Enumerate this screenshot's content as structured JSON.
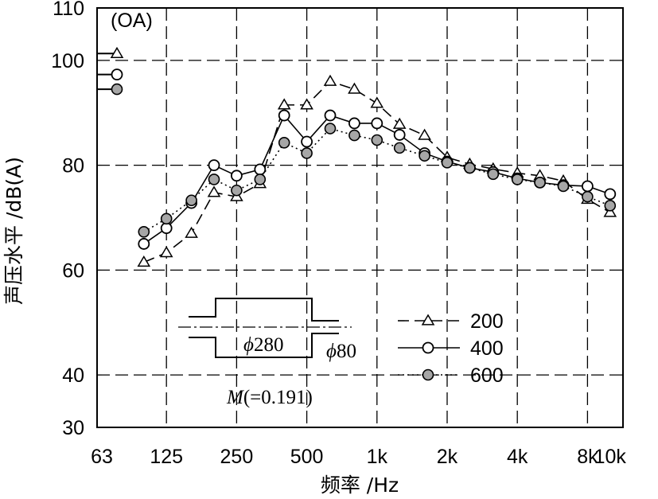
{
  "chart_data": {
    "type": "line",
    "xlabel": "频率 /Hz",
    "ylabel": "声压水平 /dB(A)",
    "x_tick_labels": [
      "63",
      "125",
      "250",
      "500",
      "1k",
      "2k",
      "4k",
      "8k",
      "10k"
    ],
    "x_tick_values": [
      63,
      125,
      250,
      500,
      1000,
      2000,
      4000,
      8000,
      10000
    ],
    "x_scale": "log",
    "y_tick_labels": [
      "30",
      "40",
      "60",
      "80",
      "100",
      "110"
    ],
    "y_tick_values": [
      30,
      40,
      60,
      80,
      100,
      110
    ],
    "ylim": [
      30,
      110
    ],
    "grid": true,
    "oa_label": "(OA)",
    "series": [
      {
        "name": "200",
        "style": "dashed",
        "marker": "triangle",
        "x": [
          100,
          125,
          160,
          200,
          250,
          315,
          400,
          500,
          630,
          800,
          1000,
          1250,
          1600,
          2000,
          2500,
          3150,
          4000,
          5000,
          6300,
          8000,
          10000
        ],
        "y": [
          61.5,
          63.3,
          67,
          74.8,
          74,
          76.5,
          91.5,
          91.5,
          96,
          94.5,
          91.8,
          87.8,
          85.7,
          81.5,
          80.2,
          79.3,
          78.5,
          78,
          77,
          73.5,
          71
        ],
        "oa": 101.3
      },
      {
        "name": "400",
        "style": "solid",
        "marker": "open-circle",
        "x": [
          100,
          125,
          160,
          200,
          250,
          315,
          400,
          500,
          630,
          800,
          1000,
          1250,
          1600,
          2000,
          2500,
          3150,
          4000,
          5000,
          6300,
          8000,
          10000
        ],
        "y": [
          65,
          68,
          72.8,
          80,
          78,
          79.2,
          89.5,
          84.5,
          89.5,
          88,
          88,
          85.8,
          82.3,
          80.7,
          79.5,
          78.7,
          77.5,
          76.7,
          76.2,
          76,
          74.5
        ],
        "oa": 97.3
      },
      {
        "name": "600",
        "style": "dotted",
        "marker": "filled-circle",
        "x": [
          100,
          125,
          160,
          200,
          250,
          315,
          400,
          500,
          630,
          800,
          1000,
          1250,
          1600,
          2000,
          2500,
          3150,
          4000,
          5000,
          6300,
          8000,
          10000
        ],
        "y": [
          67.3,
          69.8,
          73.3,
          77.3,
          75.2,
          77.3,
          84.3,
          82.3,
          87,
          85.7,
          84.8,
          83.3,
          81.8,
          80.5,
          79.5,
          78.3,
          77.3,
          76.7,
          76,
          74,
          72.3
        ],
        "oa": 94.5
      }
    ],
    "annotations": {
      "diameter_large": "280",
      "diameter_small": "80",
      "phi_symbol": "ϕ",
      "m_label": "M",
      "m_value": "(=0.191)"
    }
  }
}
